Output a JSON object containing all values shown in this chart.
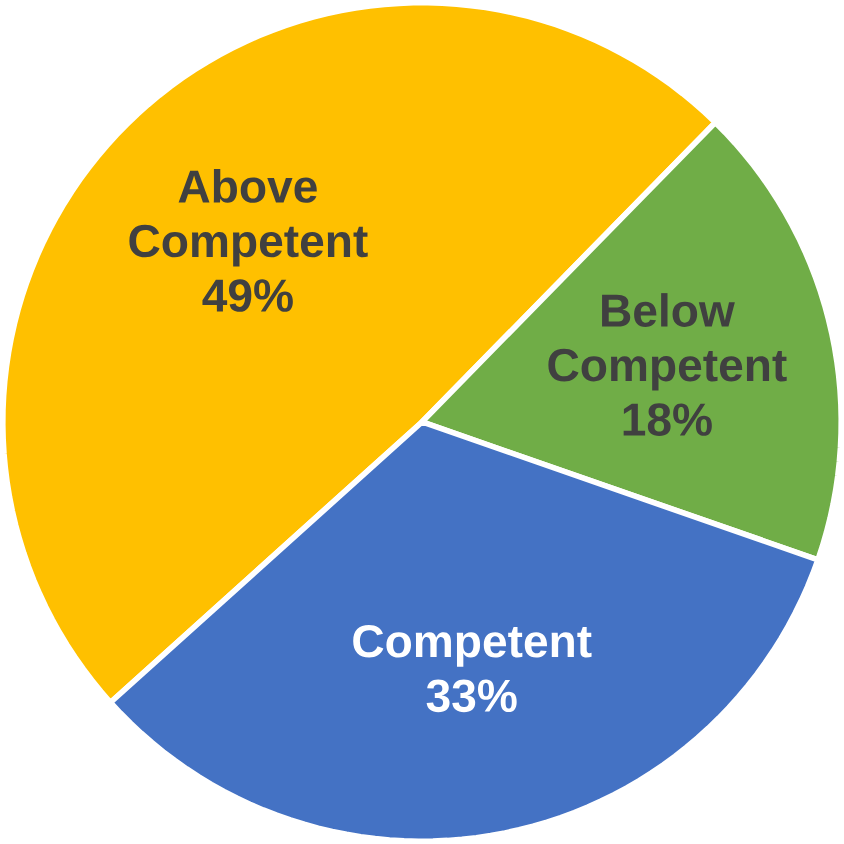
{
  "chart_data": {
    "type": "pie",
    "categories": [
      "Above Competent",
      "Below Competent",
      "Competent"
    ],
    "values": [
      49,
      18,
      33
    ],
    "value_labels": [
      "49%",
      "18%",
      "33%"
    ],
    "colors": [
      "#ffc000",
      "#70ad47",
      "#4472c4"
    ]
  }
}
